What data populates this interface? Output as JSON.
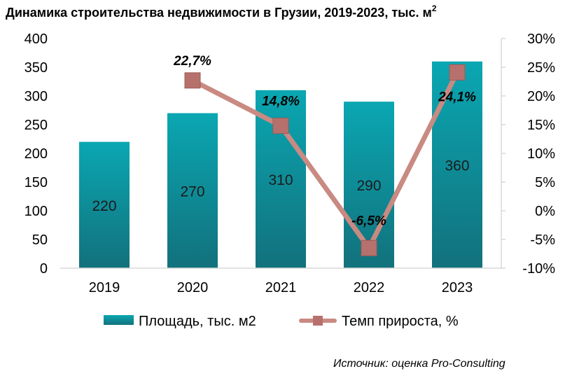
{
  "chart_data": {
    "type": "bar",
    "title": "Динамика строительства недвижимости в Грузии, 2019-2023, тыс. м",
    "title_superscript": "2",
    "categories": [
      "2019",
      "2020",
      "2021",
      "2022",
      "2023"
    ],
    "series": [
      {
        "name": "Площадь, тыс. м2",
        "type": "bar",
        "axis": "left",
        "values": [
          220,
          270,
          310,
          290,
          360
        ],
        "labels": [
          "220",
          "270",
          "310",
          "290",
          "360"
        ],
        "color": "#0f9ba6"
      },
      {
        "name": "Темп прироста, %",
        "type": "line",
        "axis": "right",
        "values": [
          null,
          22.7,
          14.8,
          -6.5,
          24.1
        ],
        "labels": [
          "",
          "22,7%",
          "14,8%",
          "-6,5%",
          "24,1%"
        ],
        "color": "#c98a82"
      }
    ],
    "y_left": {
      "min": 0,
      "max": 400,
      "step": 50,
      "ticks": [
        "0",
        "50",
        "100",
        "150",
        "200",
        "250",
        "300",
        "350",
        "400"
      ]
    },
    "y_right": {
      "min": -10,
      "max": 30,
      "step": 5,
      "ticks": [
        "-10%",
        "-5%",
        "0%",
        "5%",
        "10%",
        "15%",
        "20%",
        "25%",
        "30%"
      ]
    },
    "legend_position": "bottom",
    "grid": false
  },
  "source": "Источник: оценка Pro-Consulting"
}
